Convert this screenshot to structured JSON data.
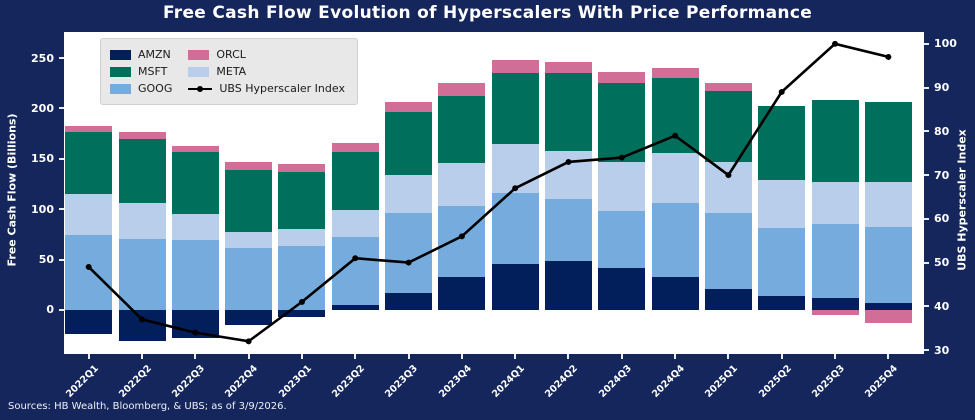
{
  "title": "Free Cash Flow Evolution of Hyperscalers With Price Performance",
  "source_note": "Sources: HB Wealth, Bloomberg, & UBS; as of 3/9/2026.",
  "colors": {
    "background": "#14265B",
    "plot_background": "#FFFFFF",
    "amzn": "#021F5B",
    "msft": "#00705C",
    "goog": "#75ACDD",
    "meta": "#B8CEEA",
    "orcl": "#D06E97",
    "index_line": "#000000",
    "legend_background": "#E8E8E8",
    "axis_text": "#FFFFFF"
  },
  "chart_data": {
    "type": "bar",
    "subtype": "stacked-bars-with-line-overlay",
    "title": "Free Cash Flow Evolution of Hyperscalers With Price Performance",
    "categories": [
      "2022Q1",
      "2022Q2",
      "2022Q3",
      "2022Q4",
      "2023Q1",
      "2023Q2",
      "2023Q3",
      "2023Q4",
      "2024Q1",
      "2024Q2",
      "2024Q3",
      "2024Q4",
      "2025Q1",
      "2025Q2",
      "2025Q3",
      "2025Q4"
    ],
    "series": [
      {
        "name": "AMZN",
        "color_key": "amzn",
        "values": [
          -24,
          -31,
          -28,
          -15,
          -7,
          5,
          17,
          33,
          46,
          49,
          42,
          33,
          21,
          14,
          12,
          7
        ]
      },
      {
        "name": "GOOG",
        "color_key": "goog",
        "values": [
          74,
          70,
          69,
          61,
          63,
          67,
          79,
          70,
          70,
          61,
          56,
          73,
          75,
          67,
          73,
          75
        ]
      },
      {
        "name": "META",
        "color_key": "meta",
        "values": [
          41,
          36,
          26,
          16,
          17,
          27,
          38,
          43,
          49,
          48,
          49,
          50,
          51,
          48,
          42,
          45
        ]
      },
      {
        "name": "MSFT",
        "color_key": "msft",
        "values": [
          62,
          64,
          62,
          62,
          57,
          58,
          62,
          66,
          70,
          77,
          78,
          74,
          70,
          73,
          81,
          79
        ]
      },
      {
        "name": "ORCL",
        "color_key": "orcl",
        "values": [
          6,
          7,
          6,
          8,
          8,
          9,
          10,
          13,
          13,
          11,
          11,
          10,
          8,
          0,
          -5,
          -13
        ]
      }
    ],
    "line_series": {
      "name": "UBS Hyperscaler Index",
      "axis": "right",
      "values": [
        49,
        37,
        34,
        32,
        41,
        51,
        50,
        56,
        67,
        73,
        74,
        79,
        70,
        89,
        100,
        97
      ]
    },
    "left_axis": {
      "label": "Free Cash Flow (Billions)",
      "ticks": [
        0,
        50,
        100,
        150,
        200,
        250
      ],
      "range": [
        -43.7,
        275.8
      ],
      "grid": false
    },
    "right_axis": {
      "label": "UBS Hyperscaler Index",
      "ticks": [
        30,
        40,
        50,
        60,
        70,
        80,
        90,
        100
      ],
      "range": [
        29.1,
        102.7
      ],
      "grid": false
    },
    "legend": {
      "position": "upper-left",
      "entries": [
        {
          "label": "AMZN",
          "glyph": "patch",
          "color_key": "amzn"
        },
        {
          "label": "MSFT",
          "glyph": "patch",
          "color_key": "msft"
        },
        {
          "label": "GOOG",
          "glyph": "patch",
          "color_key": "goog"
        },
        {
          "label": "ORCL",
          "glyph": "patch",
          "color_key": "orcl"
        },
        {
          "label": "META",
          "glyph": "patch",
          "color_key": "meta"
        },
        {
          "label": "UBS Hyperscaler Index",
          "glyph": "line-marker",
          "color_key": "index_line"
        }
      ]
    }
  }
}
